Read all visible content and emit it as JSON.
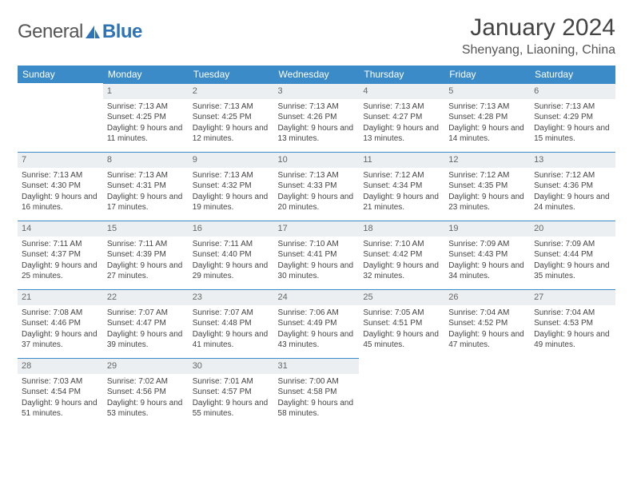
{
  "brand": {
    "part1": "General",
    "part2": "Blue"
  },
  "title": "January 2024",
  "location": "Shenyang, Liaoning, China",
  "colors": {
    "header_bg": "#3b8bc9",
    "header_text": "#ffffff",
    "daynum_bg": "#eceff1",
    "daynum_border": "#3b8bc9",
    "body_text": "#444",
    "brand_blue": "#2f74b5"
  },
  "weekdays": [
    "Sunday",
    "Monday",
    "Tuesday",
    "Wednesday",
    "Thursday",
    "Friday",
    "Saturday"
  ],
  "layout": {
    "cols": 7,
    "rows": 5,
    "start_offset": 1,
    "days_in_month": 31
  },
  "days": [
    {
      "n": 1,
      "sunrise": "7:13 AM",
      "sunset": "4:25 PM",
      "dh": 9,
      "dm": 11
    },
    {
      "n": 2,
      "sunrise": "7:13 AM",
      "sunset": "4:25 PM",
      "dh": 9,
      "dm": 12
    },
    {
      "n": 3,
      "sunrise": "7:13 AM",
      "sunset": "4:26 PM",
      "dh": 9,
      "dm": 13
    },
    {
      "n": 4,
      "sunrise": "7:13 AM",
      "sunset": "4:27 PM",
      "dh": 9,
      "dm": 13
    },
    {
      "n": 5,
      "sunrise": "7:13 AM",
      "sunset": "4:28 PM",
      "dh": 9,
      "dm": 14
    },
    {
      "n": 6,
      "sunrise": "7:13 AM",
      "sunset": "4:29 PM",
      "dh": 9,
      "dm": 15
    },
    {
      "n": 7,
      "sunrise": "7:13 AM",
      "sunset": "4:30 PM",
      "dh": 9,
      "dm": 16
    },
    {
      "n": 8,
      "sunrise": "7:13 AM",
      "sunset": "4:31 PM",
      "dh": 9,
      "dm": 17
    },
    {
      "n": 9,
      "sunrise": "7:13 AM",
      "sunset": "4:32 PM",
      "dh": 9,
      "dm": 19
    },
    {
      "n": 10,
      "sunrise": "7:13 AM",
      "sunset": "4:33 PM",
      "dh": 9,
      "dm": 20
    },
    {
      "n": 11,
      "sunrise": "7:12 AM",
      "sunset": "4:34 PM",
      "dh": 9,
      "dm": 21
    },
    {
      "n": 12,
      "sunrise": "7:12 AM",
      "sunset": "4:35 PM",
      "dh": 9,
      "dm": 23
    },
    {
      "n": 13,
      "sunrise": "7:12 AM",
      "sunset": "4:36 PM",
      "dh": 9,
      "dm": 24
    },
    {
      "n": 14,
      "sunrise": "7:11 AM",
      "sunset": "4:37 PM",
      "dh": 9,
      "dm": 25
    },
    {
      "n": 15,
      "sunrise": "7:11 AM",
      "sunset": "4:39 PM",
      "dh": 9,
      "dm": 27
    },
    {
      "n": 16,
      "sunrise": "7:11 AM",
      "sunset": "4:40 PM",
      "dh": 9,
      "dm": 29
    },
    {
      "n": 17,
      "sunrise": "7:10 AM",
      "sunset": "4:41 PM",
      "dh": 9,
      "dm": 30
    },
    {
      "n": 18,
      "sunrise": "7:10 AM",
      "sunset": "4:42 PM",
      "dh": 9,
      "dm": 32
    },
    {
      "n": 19,
      "sunrise": "7:09 AM",
      "sunset": "4:43 PM",
      "dh": 9,
      "dm": 34
    },
    {
      "n": 20,
      "sunrise": "7:09 AM",
      "sunset": "4:44 PM",
      "dh": 9,
      "dm": 35
    },
    {
      "n": 21,
      "sunrise": "7:08 AM",
      "sunset": "4:46 PM",
      "dh": 9,
      "dm": 37
    },
    {
      "n": 22,
      "sunrise": "7:07 AM",
      "sunset": "4:47 PM",
      "dh": 9,
      "dm": 39
    },
    {
      "n": 23,
      "sunrise": "7:07 AM",
      "sunset": "4:48 PM",
      "dh": 9,
      "dm": 41
    },
    {
      "n": 24,
      "sunrise": "7:06 AM",
      "sunset": "4:49 PM",
      "dh": 9,
      "dm": 43
    },
    {
      "n": 25,
      "sunrise": "7:05 AM",
      "sunset": "4:51 PM",
      "dh": 9,
      "dm": 45
    },
    {
      "n": 26,
      "sunrise": "7:04 AM",
      "sunset": "4:52 PM",
      "dh": 9,
      "dm": 47
    },
    {
      "n": 27,
      "sunrise": "7:04 AM",
      "sunset": "4:53 PM",
      "dh": 9,
      "dm": 49
    },
    {
      "n": 28,
      "sunrise": "7:03 AM",
      "sunset": "4:54 PM",
      "dh": 9,
      "dm": 51
    },
    {
      "n": 29,
      "sunrise": "7:02 AM",
      "sunset": "4:56 PM",
      "dh": 9,
      "dm": 53
    },
    {
      "n": 30,
      "sunrise": "7:01 AM",
      "sunset": "4:57 PM",
      "dh": 9,
      "dm": 55
    },
    {
      "n": 31,
      "sunrise": "7:00 AM",
      "sunset": "4:58 PM",
      "dh": 9,
      "dm": 58
    }
  ],
  "labels": {
    "sunrise": "Sunrise:",
    "sunset": "Sunset:",
    "daylight_prefix": "Daylight:",
    "hours_word": "hours",
    "and_word": "and",
    "minutes_word": "minutes."
  }
}
